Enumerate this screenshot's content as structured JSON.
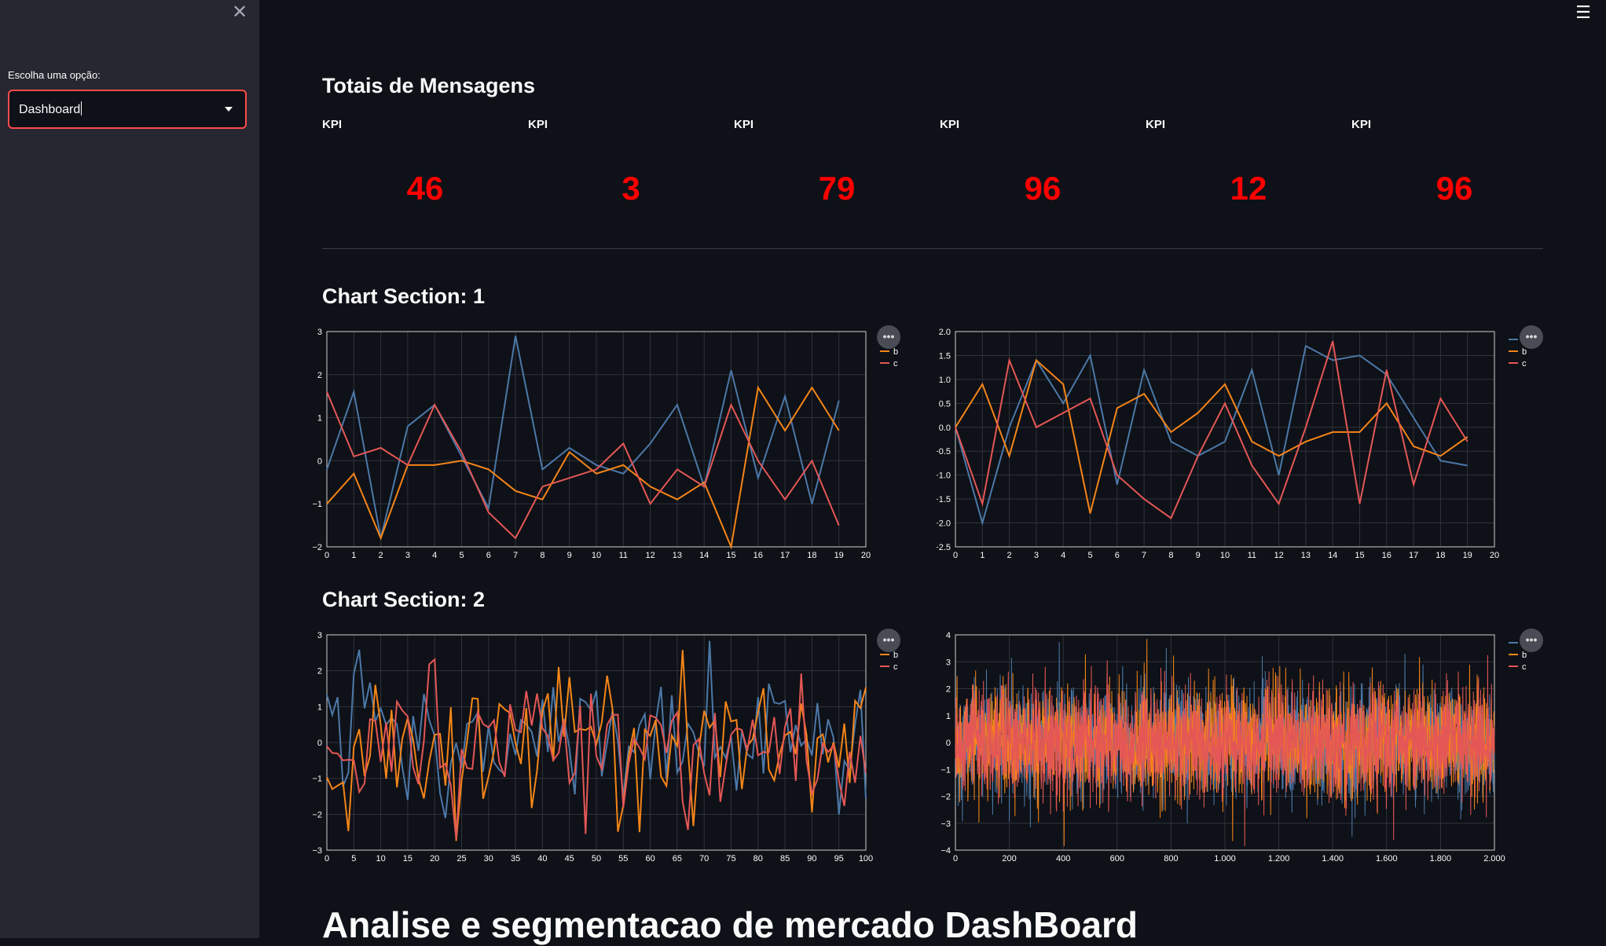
{
  "sidebar": {
    "close_icon": "close-icon",
    "select_label": "Escolha uma opção:",
    "select_value": "Dashboard",
    "accent": "#ff4b4b"
  },
  "header": {
    "menu_icon": "hamburger-icon"
  },
  "main": {
    "kpi_title": "Totais de Mensagens",
    "kpis": [
      {
        "label": "KPI",
        "value": "46"
      },
      {
        "label": "KPI",
        "value": "3"
      },
      {
        "label": "KPI",
        "value": "79"
      },
      {
        "label": "KPI",
        "value": "96"
      },
      {
        "label": "KPI",
        "value": "12"
      },
      {
        "label": "KPI",
        "value": "96"
      }
    ],
    "kpi_color": "#ff0000",
    "section1_title": "Chart Section: 1",
    "section2_title": "Chart Section: 2",
    "big_title": "Analise e segmentacao de mercado DashBoard",
    "more_label": "•••"
  },
  "chart_data": [
    {
      "type": "line",
      "x": [
        0,
        1,
        2,
        3,
        4,
        5,
        6,
        7,
        8,
        9,
        10,
        11,
        12,
        13,
        14,
        15,
        16,
        17,
        18,
        19
      ],
      "xlim": [
        0,
        20
      ],
      "ylim": [
        -2,
        3
      ],
      "xticks": [
        "0",
        "1",
        "2",
        "3",
        "4",
        "5",
        "6",
        "7",
        "8",
        "9",
        "10",
        "11",
        "12",
        "13",
        "14",
        "15",
        "16",
        "17",
        "18",
        "19",
        "20"
      ],
      "yticks": [
        "3",
        "2",
        "1",
        "0",
        "−1",
        "−2"
      ],
      "legend": [
        "a",
        "b",
        "c"
      ],
      "colors": [
        "#4c78a8",
        "#f58518",
        "#e45756"
      ],
      "series": [
        {
          "name": "a",
          "values": [
            -0.2,
            1.6,
            -1.8,
            0.8,
            1.3,
            0.1,
            -1.1,
            2.9,
            -0.2,
            0.3,
            -0.1,
            -0.3,
            0.4,
            1.3,
            -0.6,
            2.1,
            -0.4,
            1.5,
            -1.0,
            1.4
          ]
        },
        {
          "name": "b",
          "values": [
            -1.0,
            -0.3,
            -1.8,
            -0.1,
            -0.1,
            0.0,
            -0.2,
            -0.7,
            -0.9,
            0.2,
            -0.3,
            -0.1,
            -0.6,
            -0.9,
            -0.5,
            -2.0,
            1.7,
            0.7,
            1.7,
            0.7
          ]
        },
        {
          "name": "c",
          "values": [
            1.6,
            0.1,
            0.3,
            -0.1,
            1.3,
            0.2,
            -1.2,
            -1.8,
            -0.6,
            -0.4,
            -0.2,
            0.4,
            -1.0,
            -0.2,
            -0.6,
            1.3,
            0.0,
            -0.9,
            0.0,
            -1.5
          ]
        }
      ]
    },
    {
      "type": "line",
      "x": [
        0,
        1,
        2,
        3,
        4,
        5,
        6,
        7,
        8,
        9,
        10,
        11,
        12,
        13,
        14,
        15,
        16,
        17,
        18,
        19
      ],
      "xlim": [
        0,
        20
      ],
      "ylim": [
        -2.5,
        2.0
      ],
      "xticks": [
        "0",
        "1",
        "2",
        "3",
        "4",
        "5",
        "6",
        "7",
        "8",
        "9",
        "10",
        "11",
        "12",
        "13",
        "14",
        "15",
        "16",
        "17",
        "18",
        "19",
        "20"
      ],
      "yticks": [
        "2.0",
        "1.5",
        "1.0",
        "0.5",
        "0.0",
        "−0.5",
        "−1.0",
        "−1.5",
        "−2.0",
        "−2.5"
      ],
      "legend": [
        "a",
        "b",
        "c"
      ],
      "colors": [
        "#4c78a8",
        "#f58518",
        "#e45756"
      ],
      "series": [
        {
          "name": "a",
          "values": [
            0.0,
            -2.0,
            0.0,
            1.4,
            0.5,
            1.5,
            -1.2,
            1.2,
            -0.3,
            -0.6,
            -0.3,
            1.2,
            -1.0,
            1.7,
            1.4,
            1.5,
            1.1,
            0.2,
            -0.7,
            -0.8
          ]
        },
        {
          "name": "b",
          "values": [
            0.0,
            0.9,
            -0.6,
            1.4,
            0.9,
            -1.8,
            0.4,
            0.7,
            -0.1,
            0.3,
            0.9,
            -0.3,
            -0.6,
            -0.3,
            -0.1,
            -0.1,
            0.5,
            -0.4,
            -0.6,
            -0.2
          ]
        },
        {
          "name": "c",
          "values": [
            0.0,
            -1.6,
            1.4,
            0.0,
            0.3,
            0.6,
            -1.0,
            -1.5,
            -1.9,
            -0.6,
            0.5,
            -0.8,
            -1.6,
            0.0,
            1.8,
            -1.6,
            1.2,
            -1.2,
            0.6,
            -0.3
          ]
        }
      ]
    },
    {
      "type": "line",
      "xlim": [
        0,
        100
      ],
      "ylim": [
        -3,
        3
      ],
      "n_points": 101,
      "xticks": [
        "0",
        "5",
        "10",
        "15",
        "20",
        "25",
        "30",
        "35",
        "40",
        "45",
        "50",
        "55",
        "60",
        "65",
        "70",
        "75",
        "80",
        "85",
        "90",
        "95",
        "100"
      ],
      "yticks": [
        "3",
        "2",
        "1",
        "0",
        "−1",
        "−2",
        "−3"
      ],
      "legend": [
        "a",
        "b",
        "c"
      ],
      "colors": [
        "#4c78a8",
        "#f58518",
        "#e45756"
      ],
      "series": [
        {
          "name": "a"
        },
        {
          "name": "b"
        },
        {
          "name": "c"
        }
      ]
    },
    {
      "type": "line",
      "xlim": [
        0,
        2000
      ],
      "ylim": [
        -4,
        4
      ],
      "n_points": 2000,
      "xticks": [
        "0",
        "200",
        "400",
        "600",
        "800",
        "1,000",
        "1,200",
        "1,400",
        "1,600",
        "1,800",
        "2,000"
      ],
      "yticks": [
        "4",
        "3",
        "2",
        "1",
        "0",
        "−1",
        "−2",
        "−3",
        "−4"
      ],
      "legend": [
        "a",
        "b",
        "c"
      ],
      "colors": [
        "#4c78a8",
        "#f58518",
        "#e45756"
      ],
      "series": [
        {
          "name": "a"
        },
        {
          "name": "b"
        },
        {
          "name": "c"
        }
      ]
    }
  ]
}
